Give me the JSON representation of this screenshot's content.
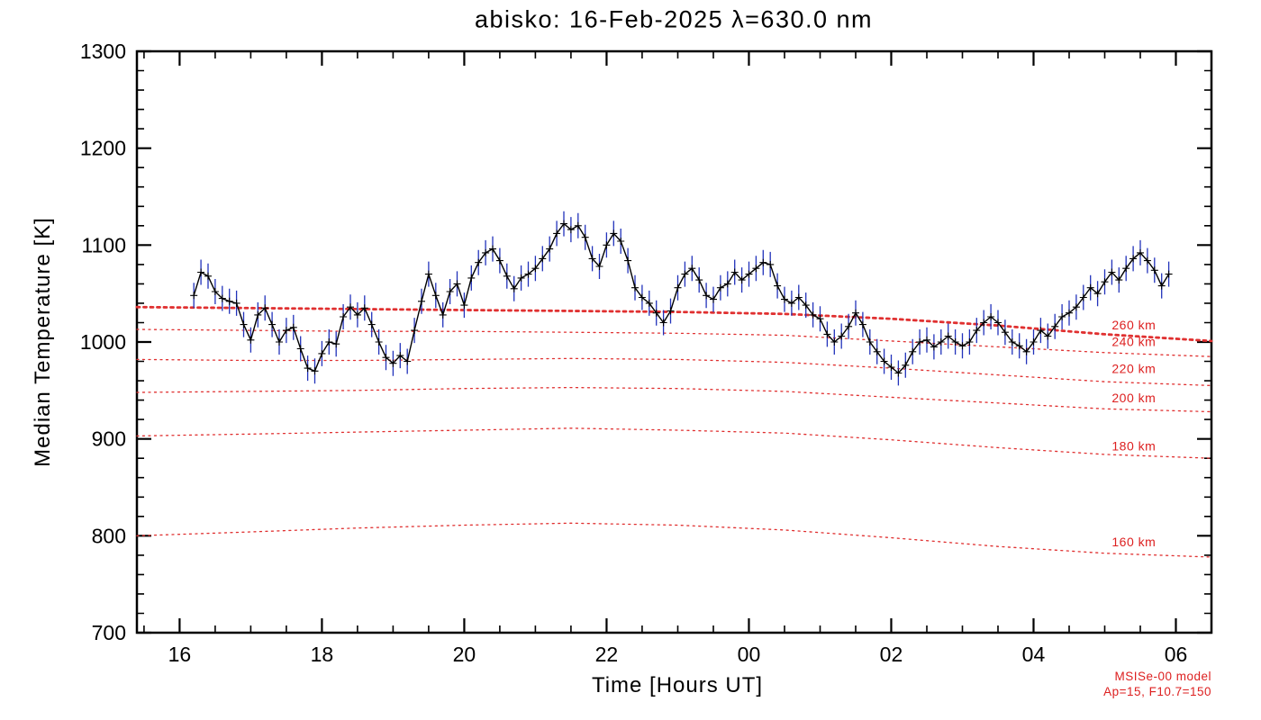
{
  "annotations": {
    "model_name": "MSISe-00 model",
    "model_params": "Ap=15, F10.7=150"
  },
  "colors": {
    "axis": "#000000",
    "data_line": "#000000",
    "error_bar": "#2233bb",
    "model_curve": "#e03030",
    "model_label": "#dd2020"
  },
  "chart_data": {
    "type": "line",
    "title": "abisko: 16-Feb-2025 λ=630.0 nm",
    "xlabel": "Time [Hours UT]",
    "ylabel": "Median Temperature [K]",
    "xlim": [
      15.4,
      30.5
    ],
    "ylim": [
      700,
      1300
    ],
    "grid": false,
    "x_ticks": {
      "values": [
        16,
        18,
        20,
        22,
        24,
        26,
        28,
        30
      ],
      "labels": [
        "16",
        "18",
        "20",
        "22",
        "00",
        "02",
        "04",
        "06"
      ],
      "minor_step": 0.5
    },
    "y_ticks": {
      "values": [
        700,
        800,
        900,
        1000,
        1100,
        1200,
        1300
      ],
      "labels": [
        "700",
        "800",
        "900",
        "1000",
        "1100",
        "1200",
        "1300"
      ],
      "minor_step": 20
    },
    "series": {
      "name": "median temperature",
      "x_start": 16.2,
      "x_step": 0.1,
      "error": 13,
      "y": [
        1048,
        1072,
        1068,
        1052,
        1045,
        1042,
        1040,
        1018,
        1002,
        1028,
        1035,
        1018,
        1000,
        1012,
        1015,
        993,
        973,
        970,
        988,
        1000,
        998,
        1026,
        1036,
        1028,
        1035,
        1018,
        1000,
        984,
        978,
        986,
        980,
        1012,
        1042,
        1070,
        1048,
        1028,
        1052,
        1060,
        1038,
        1066,
        1082,
        1092,
        1096,
        1084,
        1068,
        1055,
        1066,
        1070,
        1076,
        1086,
        1096,
        1112,
        1122,
        1116,
        1120,
        1108,
        1086,
        1078,
        1100,
        1112,
        1104,
        1084,
        1056,
        1046,
        1040,
        1030,
        1020,
        1032,
        1056,
        1070,
        1076,
        1064,
        1048,
        1044,
        1056,
        1060,
        1072,
        1064,
        1070,
        1076,
        1082,
        1080,
        1058,
        1044,
        1040,
        1046,
        1038,
        1028,
        1024,
        1008,
        1000,
        1006,
        1016,
        1030,
        1018,
        1000,
        990,
        980,
        974,
        968,
        976,
        990,
        1000,
        1002,
        995,
        1000,
        1006,
        1000,
        996,
        1000,
        1012,
        1020,
        1026,
        1020,
        1010,
        1000,
        996,
        990,
        1000,
        1012,
        1006,
        1016,
        1026,
        1030,
        1036,
        1046,
        1056,
        1050,
        1062,
        1072,
        1064,
        1076,
        1086,
        1092,
        1084,
        1074,
        1058,
        1070
      ]
    },
    "model_x": [
      15.4,
      17,
      18.5,
      20,
      21.5,
      23,
      24.5,
      26,
      27.5,
      29,
      30.5
    ],
    "model_curves": [
      {
        "label": "260 km",
        "bold": true,
        "label_x": 29.1,
        "label_y": 1013,
        "y": [
          1036,
          1035,
          1034,
          1033,
          1032,
          1031,
          1029,
          1024,
          1017,
          1008,
          1001
        ]
      },
      {
        "label": "240 km",
        "bold": false,
        "label_x": 29.1,
        "label_y": 996,
        "y": [
          1013,
          1012,
          1011,
          1011,
          1010,
          1009,
          1007,
          1001,
          995,
          989,
          985
        ]
      },
      {
        "label": "220 km",
        "bold": false,
        "label_x": 29.1,
        "label_y": 968,
        "y": [
          982,
          981,
          981,
          982,
          983,
          982,
          979,
          973,
          966,
          959,
          955
        ]
      },
      {
        "label": "200 km",
        "bold": false,
        "label_x": 29.1,
        "label_y": 938,
        "y": [
          948,
          949,
          950,
          952,
          953,
          952,
          949,
          943,
          937,
          931,
          928
        ]
      },
      {
        "label": "180 km",
        "bold": false,
        "label_x": 29.1,
        "label_y": 888,
        "y": [
          903,
          905,
          907,
          909,
          911,
          909,
          906,
          899,
          891,
          884,
          880
        ]
      },
      {
        "label": "160 km",
        "bold": false,
        "label_x": 29.1,
        "label_y": 789,
        "y": [
          800,
          804,
          808,
          811,
          813,
          811,
          806,
          798,
          789,
          782,
          778
        ]
      }
    ]
  }
}
